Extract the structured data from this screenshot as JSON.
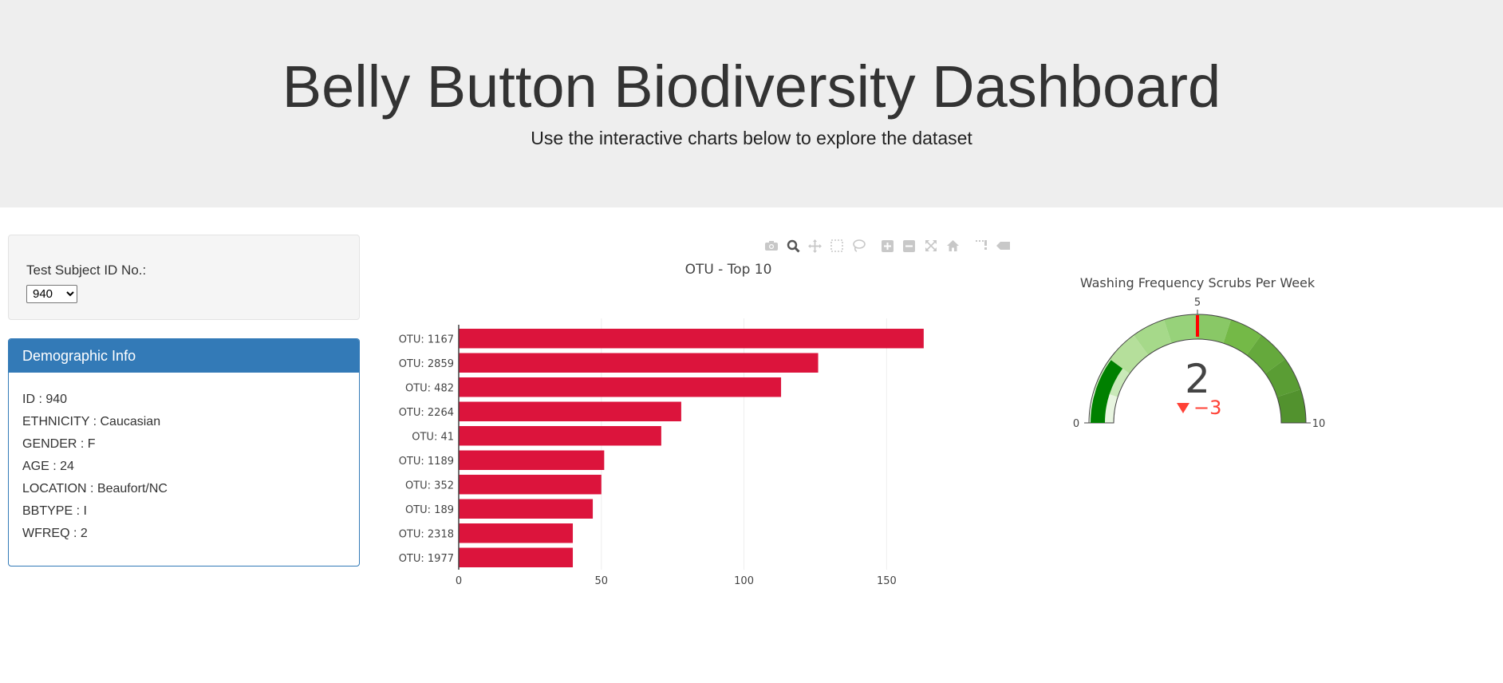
{
  "header": {
    "title": "Belly Button Biodiversity Dashboard",
    "subtitle": "Use the interactive charts below to explore the dataset"
  },
  "selector": {
    "label": "Test Subject ID No.:",
    "selected": "940"
  },
  "demographic": {
    "heading": "Demographic Info",
    "rows": [
      "ID : 940",
      "ETHNICITY : Caucasian",
      "GENDER : F",
      "AGE : 24",
      "LOCATION : Beaufort/NC",
      "BBTYPE : I",
      "WFREQ : 2"
    ]
  },
  "toolbar_icons": [
    "camera-icon",
    "zoom-icon",
    "pan-icon",
    "box-select-icon",
    "lasso-select-icon",
    "zoom-in-icon",
    "zoom-out-icon",
    "autoscale-icon",
    "reset-axes-icon",
    "spike-lines-icon",
    "compare-hover-icon"
  ],
  "chart_data": [
    {
      "type": "bar",
      "orientation": "horizontal",
      "title": "OTU - Top 10",
      "categories": [
        "OTU: 1167",
        "OTU: 2859",
        "OTU: 482",
        "OTU: 2264",
        "OTU: 41",
        "OTU: 1189",
        "OTU: 352",
        "OTU: 189",
        "OTU: 2318",
        "OTU: 1977"
      ],
      "values": [
        163,
        126,
        113,
        78,
        71,
        51,
        50,
        47,
        40,
        40
      ],
      "xlim": [
        0,
        165
      ],
      "xticks": [
        0,
        50,
        100,
        150
      ],
      "grid": true,
      "color": "#dc143c"
    },
    {
      "type": "gauge",
      "title": "Washing Frequency Scrubs Per Week",
      "value": 2,
      "reference": 5,
      "delta": "−3",
      "range": [
        0,
        10
      ],
      "tick_labels": [
        "0",
        "5",
        "10"
      ],
      "bar_color": "#008000",
      "threshold_color": "#ff0000",
      "delta_color": "#ff4136",
      "steps": [
        {
          "range": [
            0,
            1
          ],
          "color": "#e8f5e0"
        },
        {
          "range": [
            1,
            2
          ],
          "color": "#c9e9b8"
        },
        {
          "range": [
            2,
            3
          ],
          "color": "#b5df9b"
        },
        {
          "range": [
            3,
            4
          ],
          "color": "#a6d98a"
        },
        {
          "range": [
            4,
            5
          ],
          "color": "#97d27a"
        },
        {
          "range": [
            5,
            6
          ],
          "color": "#89c866"
        },
        {
          "range": [
            6,
            7
          ],
          "color": "#74b947"
        },
        {
          "range": [
            7,
            8
          ],
          "color": "#65a93c"
        },
        {
          "range": [
            8,
            9
          ],
          "color": "#5a9d34"
        },
        {
          "range": [
            9,
            10
          ],
          "color": "#52922e"
        }
      ]
    }
  ]
}
